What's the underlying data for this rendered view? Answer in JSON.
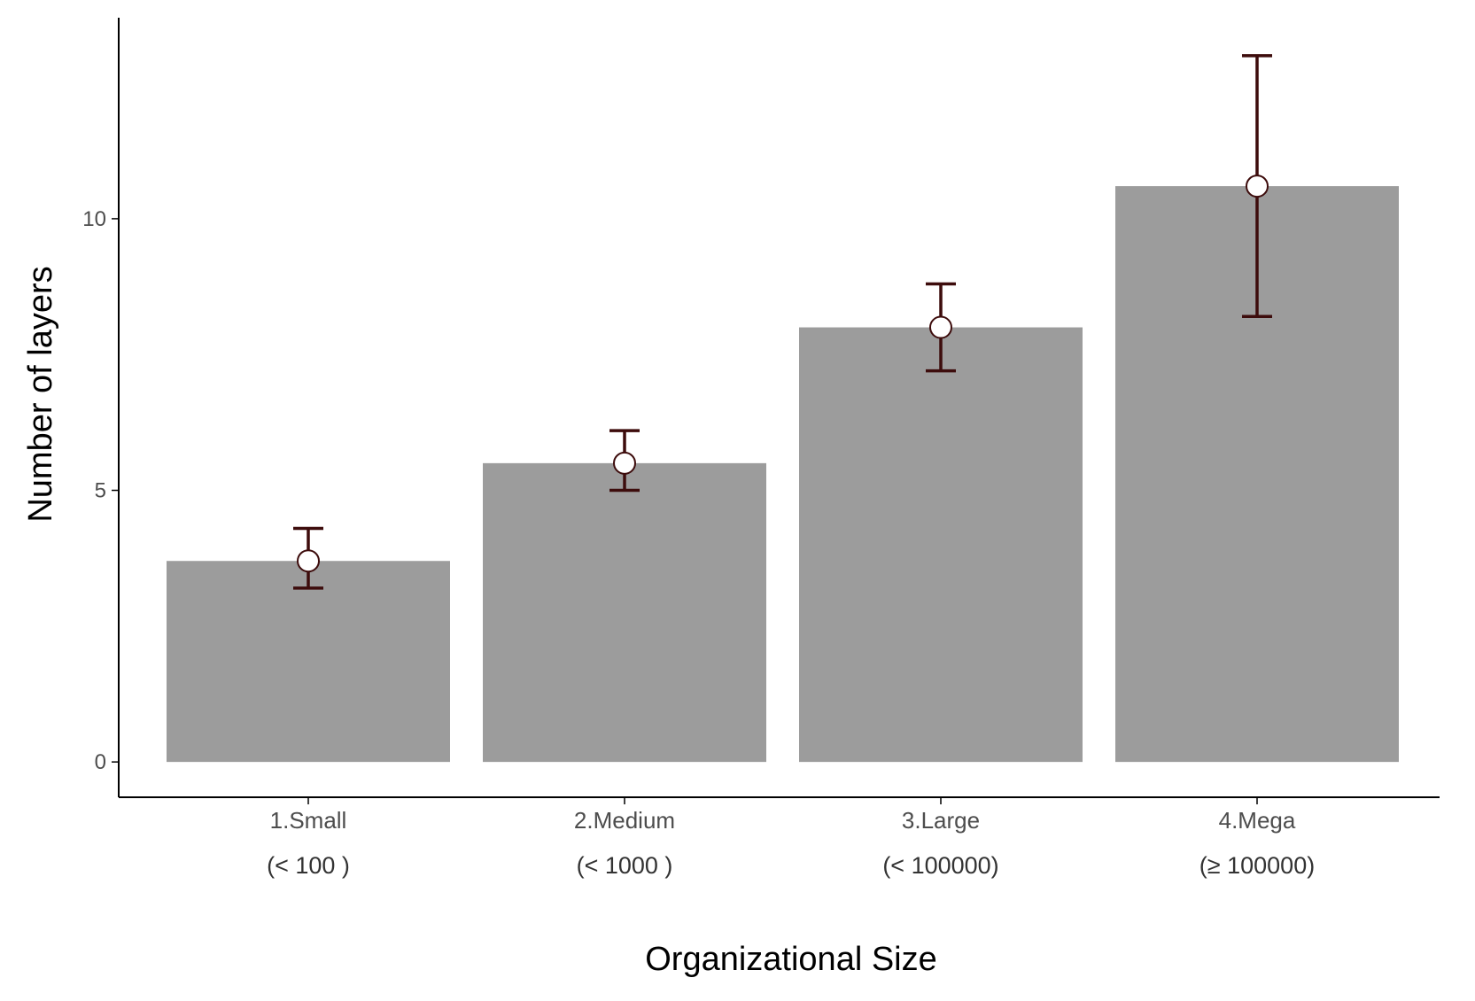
{
  "chart_data": {
    "type": "bar",
    "title": "",
    "xlabel": "Organizational Size",
    "ylabel": "Number of layers",
    "categories": [
      "1.Small",
      "2.Medium",
      "3.Large",
      "4.Mega"
    ],
    "category_sublabels": [
      "(< 100 )",
      "(< 1000 )",
      "(< 100000)",
      "(≥ 100000)"
    ],
    "values": [
      3.7,
      5.5,
      8.0,
      10.6
    ],
    "error_bars": {
      "lower": [
        3.2,
        5.0,
        7.2,
        8.2
      ],
      "upper": [
        4.3,
        6.1,
        8.8,
        13.0
      ]
    },
    "yticks": [
      0,
      5,
      10
    ],
    "ylim": [
      -0.65,
      13.7
    ],
    "grid": false,
    "legend": "none",
    "colors": {
      "bar": "#9c9c9c",
      "error_bar": "#3d0c0c",
      "point_fill": "#ffffff",
      "point_stroke": "#3d0c0c",
      "axis": "#000000"
    }
  }
}
